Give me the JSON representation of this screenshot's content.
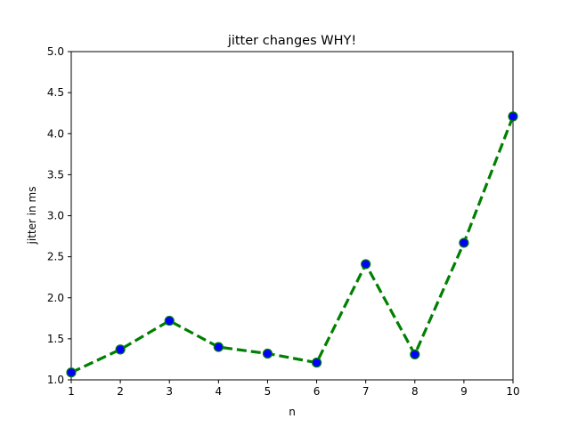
{
  "chart_data": {
    "type": "line",
    "title": "jitter changes WHY!",
    "xlabel": "n",
    "ylabel": "jitter in ms",
    "x": [
      1,
      2,
      3,
      4,
      5,
      6,
      7,
      8,
      9,
      10
    ],
    "series": [
      {
        "values": [
          1.09,
          1.37,
          1.72,
          1.4,
          1.32,
          1.21,
          2.41,
          1.31,
          2.67,
          4.21
        ],
        "line_color": "#008000",
        "line_style": "dashed",
        "marker": "circle",
        "marker_face_color": "#0000ff",
        "marker_edge_color": "#008000"
      }
    ],
    "xlim": [
      1,
      10
    ],
    "ylim": [
      1.0,
      5.0
    ],
    "x_ticks": [
      1,
      2,
      3,
      4,
      5,
      6,
      7,
      8,
      9,
      10
    ],
    "y_ticks": [
      1.0,
      1.5,
      2.0,
      2.5,
      3.0,
      3.5,
      4.0,
      4.5,
      5.0
    ],
    "x_tick_labels": [
      "1",
      "2",
      "3",
      "4",
      "5",
      "6",
      "7",
      "8",
      "9",
      "10"
    ],
    "y_tick_labels": [
      "1.0",
      "1.5",
      "2.0",
      "2.5",
      "3.0",
      "3.5",
      "4.0",
      "4.5",
      "5.0"
    ],
    "grid": false,
    "legend": "none"
  }
}
